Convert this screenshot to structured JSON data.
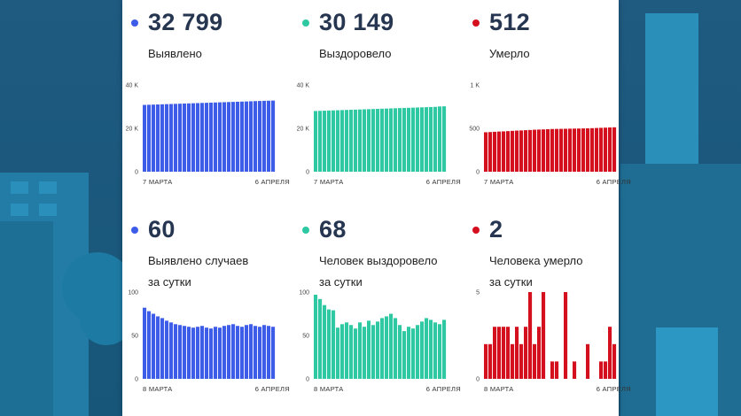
{
  "colors": {
    "blue": "#3d5de8",
    "green": "#2ec9a2",
    "red": "#d5101e",
    "text": "#263550"
  },
  "cards": [
    {
      "value": "32 799",
      "label_lines": [
        "Выявлено"
      ],
      "color_key": "blue",
      "chart_data": {
        "type": "bar",
        "yticks": [
          {
            "v": 0,
            "t": "0"
          },
          {
            "v": 20000,
            "t": "20 K"
          },
          {
            "v": 40000,
            "t": "40 K"
          }
        ],
        "ylim": [
          0,
          40000
        ],
        "xlabel_start": "7 МАРТА",
        "xlabel_end": "6 АПРЕЛЯ",
        "values": [
          30800,
          30870,
          30940,
          31010,
          31080,
          31150,
          31220,
          31290,
          31360,
          31430,
          31500,
          31570,
          31640,
          31710,
          31780,
          31850,
          31920,
          31990,
          32060,
          32130,
          32200,
          32270,
          32340,
          32410,
          32480,
          32550,
          32620,
          32690,
          32739,
          32799
        ]
      }
    },
    {
      "value": "30 149",
      "label_lines": [
        "Выздоровело"
      ],
      "color_key": "green",
      "chart_data": {
        "type": "bar",
        "yticks": [
          {
            "v": 0,
            "t": "0"
          },
          {
            "v": 20000,
            "t": "20 K"
          },
          {
            "v": 40000,
            "t": "40 K"
          }
        ],
        "ylim": [
          0,
          40000
        ],
        "xlabel_start": "7 МАРТА",
        "xlabel_end": "6 АПРЕЛЯ",
        "values": [
          28000,
          28070,
          28140,
          28210,
          28280,
          28350,
          28420,
          28490,
          28560,
          28630,
          28700,
          28770,
          28840,
          28910,
          28980,
          29050,
          29120,
          29190,
          29260,
          29330,
          29400,
          29470,
          29540,
          29610,
          29680,
          29750,
          29820,
          29890,
          30081,
          30149
        ]
      }
    },
    {
      "value": "512",
      "label_lines": [
        "Умерло"
      ],
      "color_key": "red",
      "chart_data": {
        "type": "bar",
        "yticks": [
          {
            "v": 0,
            "t": "0"
          },
          {
            "v": 500,
            "t": "500"
          },
          {
            "v": 1000,
            "t": "1 K"
          }
        ],
        "ylim": [
          0,
          1000
        ],
        "xlabel_start": "7 МАРТА",
        "xlabel_end": "6 АПРЕЛЯ",
        "values": [
          455,
          457,
          460,
          463,
          465,
          468,
          471,
          474,
          476,
          479,
          481,
          484,
          486,
          488,
          490,
          492,
          493,
          494,
          495,
          496,
          497,
          498,
          499,
          500,
          502,
          504,
          506,
          508,
          510,
          512
        ]
      }
    },
    {
      "value": "60",
      "label_lines": [
        "Выявлено случаев",
        "за сутки"
      ],
      "color_key": "blue",
      "chart_data": {
        "type": "bar",
        "yticks": [
          {
            "v": 0,
            "t": "0"
          },
          {
            "v": 50,
            "t": "50"
          },
          {
            "v": 100,
            "t": "100"
          }
        ],
        "ylim": [
          0,
          100
        ],
        "xlabel_start": "8 МАРТА",
        "xlabel_end": "6 АПРЕЛЯ",
        "values": [
          82,
          78,
          75,
          72,
          70,
          67,
          65,
          63,
          62,
          61,
          60,
          59,
          60,
          61,
          59,
          58,
          60,
          59,
          61,
          62,
          63,
          61,
          60,
          62,
          63,
          61,
          60,
          62,
          61,
          60
        ]
      }
    },
    {
      "value": "68",
      "label_lines": [
        "Человек выздоровело",
        "за сутки"
      ],
      "color_key": "green",
      "chart_data": {
        "type": "bar",
        "yticks": [
          {
            "v": 0,
            "t": "0"
          },
          {
            "v": 50,
            "t": "50"
          },
          {
            "v": 100,
            "t": "100"
          }
        ],
        "ylim": [
          0,
          100
        ],
        "xlabel_start": "8 МАРТА",
        "xlabel_end": "6 АПРЕЛЯ",
        "values": [
          97,
          92,
          85,
          80,
          79,
          59,
          63,
          65,
          62,
          58,
          65,
          60,
          67,
          62,
          66,
          70,
          72,
          75,
          70,
          62,
          55,
          60,
          58,
          62,
          66,
          70,
          68,
          65,
          63,
          68
        ]
      }
    },
    {
      "value": "2",
      "label_lines": [
        "Человека умерло",
        "за сутки"
      ],
      "color_key": "red",
      "chart_data": {
        "type": "bar",
        "yticks": [
          {
            "v": 0,
            "t": "0"
          },
          {
            "v": 5,
            "t": "5"
          }
        ],
        "ylim": [
          0,
          5
        ],
        "xlabel_start": "8 МАРТА",
        "xlabel_end": "6 АПРЕЛЯ",
        "values": [
          2,
          2,
          3,
          3,
          3,
          3,
          2,
          3,
          2,
          3,
          5,
          2,
          3,
          5,
          0,
          1,
          1,
          0,
          5,
          0,
          1,
          0,
          0,
          2,
          0,
          0,
          1,
          1,
          3,
          2
        ]
      }
    }
  ]
}
